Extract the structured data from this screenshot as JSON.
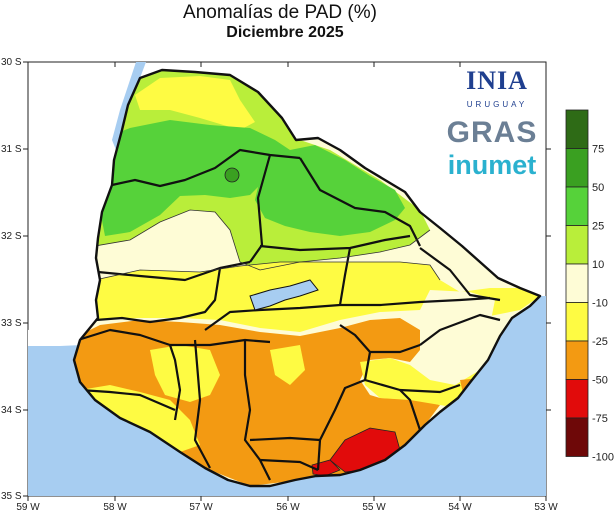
{
  "title": "Anomalías de PAD (%)",
  "subtitle": "Diciembre 2025",
  "axes": {
    "x_ticks": [
      "59 W",
      "58 W",
      "57 W",
      "56 W",
      "55 W",
      "54 W",
      "53 W"
    ],
    "y_ticks": [
      "30 S",
      "31 S",
      "32 S",
      "33 S",
      "34 S",
      "35 S"
    ]
  },
  "logos": {
    "inia": "INIA",
    "inia_sub": "URUGUAY",
    "gras": "GRAS",
    "inumet": "inumet"
  },
  "legend": {
    "labels": [
      "75",
      "50",
      "25",
      "10",
      "-10",
      "-25",
      "-50",
      "-75",
      "-100"
    ],
    "colors": [
      "#2e6b16",
      "#3aa021",
      "#56d23a",
      "#b9ee3a",
      "#fefcd6",
      "#fefb43",
      "#f39a12",
      "#e10b0b",
      "#6e0808"
    ]
  },
  "colors": {
    "sea": "#a7cdf1",
    "land_neighbors": "#ffffff"
  }
}
